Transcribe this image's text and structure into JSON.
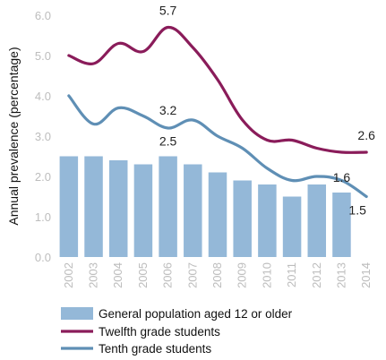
{
  "chart_data": {
    "type": "bar+line",
    "title": "",
    "xlabel": "",
    "ylabel": "Annual prevalence (percentage)",
    "ylim": [
      0,
      6
    ],
    "yticks": [
      "0.0",
      "1.0",
      "2.0",
      "3.0",
      "4.0",
      "5.0",
      "6.0"
    ],
    "categories": [
      "2002",
      "2003",
      "2004",
      "2005",
      "2006",
      "2007",
      "2008",
      "2009",
      "2010",
      "2011",
      "2012",
      "2013",
      "2014"
    ],
    "grid": false,
    "legend_position": "bottom",
    "series": [
      {
        "name": "General population aged 12 or older",
        "type": "bar",
        "color": "#94b8d8",
        "values": [
          2.5,
          2.5,
          2.4,
          2.3,
          2.5,
          2.3,
          2.1,
          1.9,
          1.8,
          1.5,
          1.8,
          1.6,
          null
        ]
      },
      {
        "name": "Twelfth grade students",
        "type": "line",
        "color": "#8a1c5a",
        "values": [
          5.0,
          4.8,
          5.3,
          5.1,
          5.7,
          5.2,
          4.4,
          3.4,
          2.9,
          2.9,
          2.7,
          2.6,
          2.6
        ]
      },
      {
        "name": "Tenth grade students",
        "type": "line",
        "color": "#5f8fb5",
        "values": [
          4.0,
          3.3,
          3.7,
          3.5,
          3.2,
          3.4,
          3.0,
          2.7,
          2.2,
          1.9,
          2.0,
          1.9,
          1.5
        ]
      }
    ],
    "annotations": [
      {
        "text": "5.7",
        "x": "2006",
        "y": 5.7,
        "series": "Twelfth grade students"
      },
      {
        "text": "3.2",
        "x": "2006",
        "y": 3.2,
        "series": "Tenth grade students"
      },
      {
        "text": "2.5",
        "x": "2006",
        "y": 2.5,
        "series": "General population aged 12 or older"
      },
      {
        "text": "2.6",
        "x": "2014",
        "y": 2.6,
        "series": "Twelfth grade students"
      },
      {
        "text": "1.6",
        "x": "2013",
        "y": 1.6,
        "series": "General population aged 12 or older"
      },
      {
        "text": "1.5",
        "x": "2014",
        "y": 1.5,
        "series": "Tenth grade students"
      }
    ]
  }
}
